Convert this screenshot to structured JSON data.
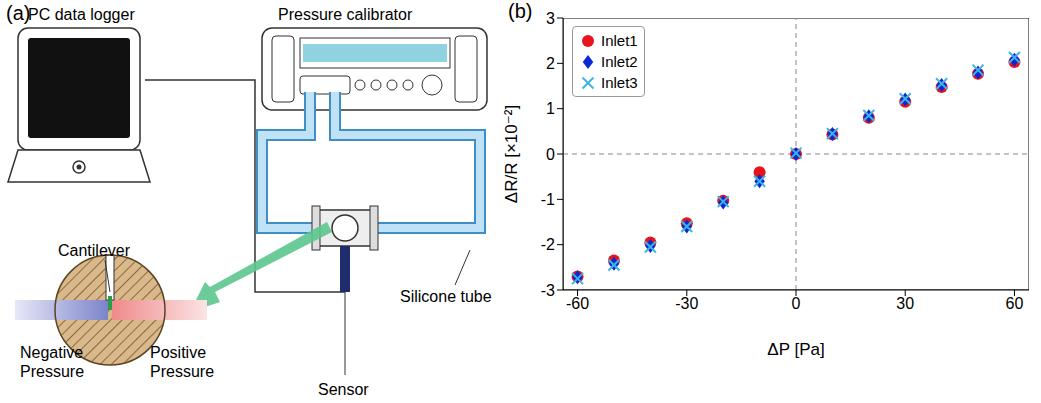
{
  "diagram": {
    "panel_label": "(a)",
    "labels": {
      "logger": "PC data logger",
      "calibrator": "Pressure calibrator",
      "cantilever": "Cantilever",
      "negative": "Negative Pressure",
      "positive": "Positive Pressure",
      "sensor": "Sensor",
      "tube": "Silicone tube"
    }
  },
  "chart_data": {
    "type": "scatter",
    "panel_label": "(b)",
    "x_label": "ΔP [Pa]",
    "y_label": "ΔR/R [×10⁻²]",
    "x": [
      -60,
      -50,
      -40,
      -30,
      -20,
      -10,
      0,
      10,
      20,
      30,
      40,
      50,
      60
    ],
    "series": [
      {
        "name": "Inlet1",
        "color": "#e8141c",
        "marker": "circle",
        "values": [
          -2.7,
          -2.35,
          -1.95,
          -1.53,
          -1.03,
          -0.4,
          0,
          0.43,
          0.8,
          1.15,
          1.48,
          1.77,
          2.03
        ]
      },
      {
        "name": "Inlet2",
        "color": "#0a28d6",
        "marker": "diamond",
        "values": [
          -2.72,
          -2.42,
          -2.03,
          -1.6,
          -1.07,
          -0.6,
          0,
          0.44,
          0.83,
          1.2,
          1.52,
          1.8,
          2.08
        ]
      },
      {
        "name": "Inlet3",
        "color": "#3cb4e5",
        "marker": "x",
        "values": [
          -2.75,
          -2.45,
          -2.05,
          -1.6,
          -1.05,
          -0.6,
          0.02,
          0.45,
          0.85,
          1.22,
          1.55,
          1.85,
          2.13
        ]
      }
    ],
    "xlim": [
      -64,
      64
    ],
    "ylim": [
      -3,
      3
    ],
    "xticks": [
      -60,
      -30,
      0,
      30,
      60
    ],
    "yticks": [
      -3,
      -2,
      -1,
      0,
      1,
      2,
      3
    ],
    "legend": "upper left",
    "grid": false
  }
}
